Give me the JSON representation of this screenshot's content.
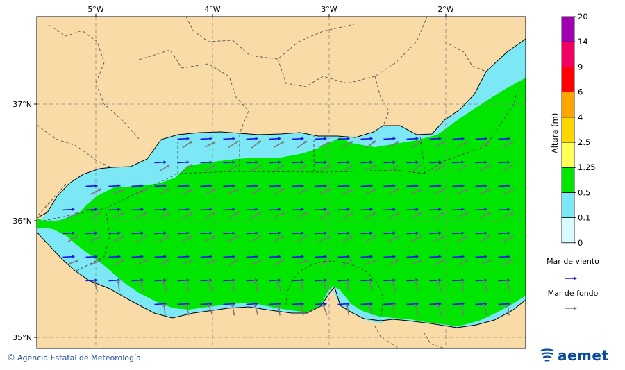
{
  "map": {
    "lon_labels": [
      "5°W",
      "4°W",
      "3°W",
      "2°W"
    ],
    "lat_labels": [
      "37°N",
      "36°N",
      "35°N"
    ],
    "colors": {
      "land": "#f9dba8",
      "sea_low": "#7de8f5",
      "sea_mid": "#00e600",
      "wind_wave": "#1414e6",
      "swell": "#7a7a7a",
      "border": "#555555"
    }
  },
  "colorbar": {
    "title": "Altura (m)",
    "levels": [
      "0",
      "0.1",
      "0.5",
      "1.25",
      "2.5",
      "4",
      "6",
      "9",
      "14",
      "20"
    ],
    "colors": [
      "#d8fbfd",
      "#7de8f5",
      "#00e600",
      "#ffff55",
      "#ffd700",
      "#ffa500",
      "#ff0000",
      "#f00060",
      "#a000b4"
    ]
  },
  "legend": {
    "wind_wave_label": "Mar de viento",
    "swell_label": "Mar de fondo"
  },
  "footer": {
    "credit": "Agencia Estatal de Meteorología",
    "copyright_symbol": "©",
    "logo_text": "aemet"
  }
}
